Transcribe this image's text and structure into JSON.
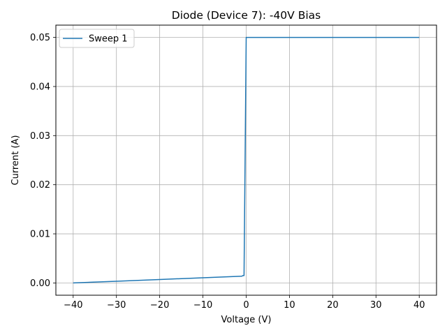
{
  "chart_data": {
    "type": "line",
    "title": "Diode (Device 7): -40V Bias",
    "xlabel": "Voltage (V)",
    "ylabel": "Current (A)",
    "xlim": [
      -44,
      44
    ],
    "ylim": [
      -0.0025,
      0.0525
    ],
    "grid": true,
    "legend_position": "top-left",
    "x_ticks": [
      -40,
      -30,
      -20,
      -10,
      0,
      10,
      20,
      30,
      40
    ],
    "x_tick_labels": [
      "−40",
      "−30",
      "−20",
      "−10",
      "0",
      "10",
      "20",
      "30",
      "40"
    ],
    "y_ticks": [
      0,
      0.01,
      0.02,
      0.03,
      0.04,
      0.05
    ],
    "y_tick_labels": [
      "0.00",
      "0.01",
      "0.02",
      "0.03",
      "0.04",
      "0.05"
    ],
    "series": [
      {
        "name": "Sweep 1",
        "color": "#1f77b4",
        "x": [
          -40,
          -30,
          -20,
          -10,
          -1,
          -0.8,
          -0.5,
          0,
          40
        ],
        "y": [
          0,
          0.00035,
          0.0007,
          0.00105,
          0.00138,
          0.0015,
          0.0015,
          0.05,
          0.05
        ]
      }
    ]
  }
}
